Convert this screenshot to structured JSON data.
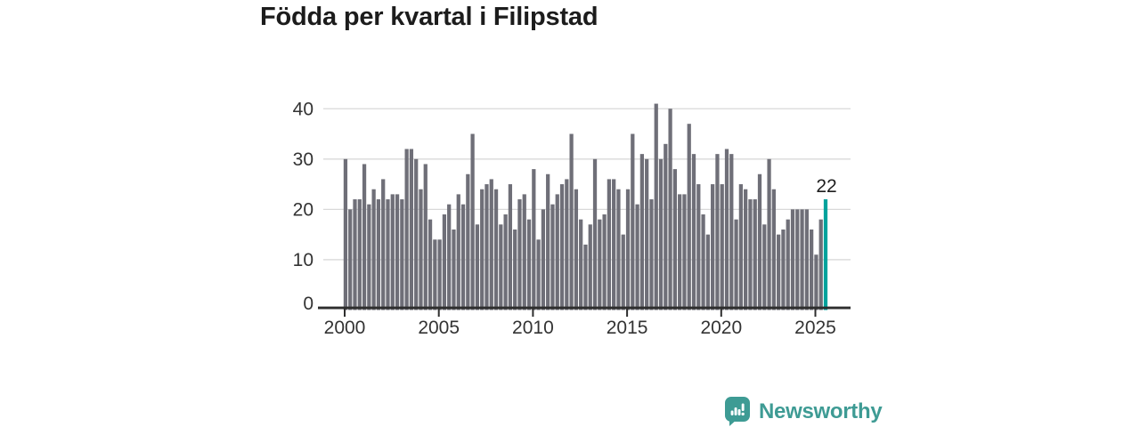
{
  "title": "Födda per kvartal i Filipstad",
  "chart_data": {
    "type": "bar",
    "title": "Födda per kvartal i Filipstad",
    "frequency": "quarterly",
    "start_period": "2000-Q1",
    "end_period": "2025-Q3",
    "n_bars": 103,
    "values": [
      30,
      20,
      22,
      22,
      29,
      21,
      24,
      22,
      26,
      22,
      23,
      23,
      22,
      32,
      32,
      30,
      24,
      29,
      18,
      14,
      14,
      19,
      21,
      16,
      23,
      21,
      27,
      35,
      17,
      24,
      25,
      26,
      24,
      17,
      19,
      25,
      16,
      22,
      23,
      18,
      28,
      14,
      20,
      27,
      21,
      23,
      25,
      26,
      35,
      24,
      18,
      13,
      17,
      30,
      18,
      19,
      26,
      26,
      24,
      15,
      24,
      35,
      21,
      31,
      30,
      22,
      41,
      30,
      33,
      40,
      28,
      23,
      23,
      37,
      31,
      25,
      19,
      15,
      25,
      31,
      25,
      32,
      31,
      18,
      25,
      24,
      22,
      22,
      27,
      17,
      30,
      24,
      15,
      16,
      18,
      20,
      20,
      20,
      20,
      16,
      11,
      18,
      22
    ],
    "highlight_last_value": 22,
    "last_value_label": "22",
    "xlabel": "",
    "ylabel": "",
    "ylim": [
      0,
      43
    ],
    "y_ticks": [
      0,
      10,
      20,
      30,
      40
    ],
    "x_tick_labels": [
      "2000",
      "2005",
      "2010",
      "2015",
      "2020",
      "2025"
    ],
    "quarters_per_tick": 20,
    "grid": "horizontal",
    "legend": "none",
    "bar_color": "#6f6f78",
    "highlight_color": "#00a29c",
    "grid_color": "#d9d9d9",
    "axis_color": "#2e2e2e",
    "tick_text_color": "#333333",
    "annotation_color": "#1e1e1e"
  },
  "branding": {
    "name": "Newsworthy",
    "text_color": "#3e9b94",
    "icon_color": "#3e9b94",
    "icon": "bar-chart-bubble-icon"
  }
}
